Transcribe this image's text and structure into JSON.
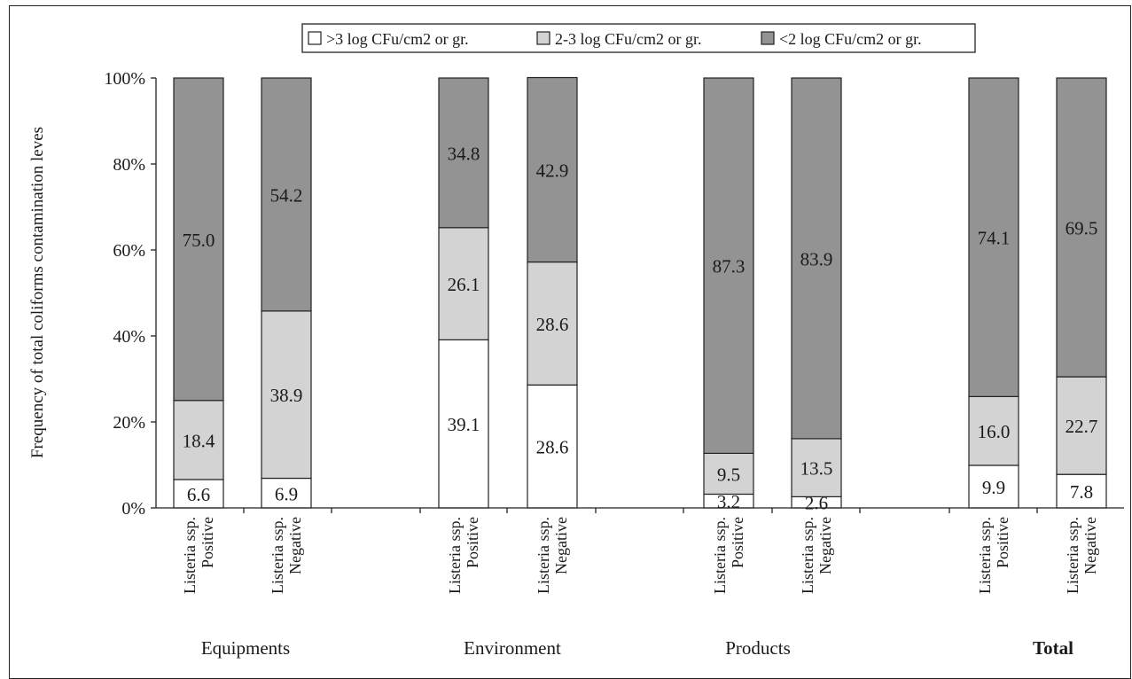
{
  "chart_data": {
    "type": "bar",
    "stacked": true,
    "percent_stacked": true,
    "title": "",
    "ylabel": "Frequency of total coliforms contamination leves",
    "xlabel": "",
    "ylim": [
      0,
      100
    ],
    "yticks": [
      "0%",
      "20%",
      "40%",
      "60%",
      "80%",
      "100%"
    ],
    "legend_position": "top-center",
    "groups": [
      {
        "label": "Equipments",
        "bold": false
      },
      {
        "label": "Environment",
        "bold": false
      },
      {
        "label": "Products",
        "bold": false
      },
      {
        "label": "Total",
        "bold": true
      }
    ],
    "categories": [
      {
        "group": 0,
        "line1": "Listeria ssp.",
        "line2": "Positive"
      },
      {
        "group": 0,
        "line1": "Listeria ssp.",
        "line2": "Negative"
      },
      {
        "group": 1,
        "line1": "Listeria ssp.",
        "line2": "Positive"
      },
      {
        "group": 1,
        "line1": "Listeria ssp.",
        "line2": "Negative"
      },
      {
        "group": 2,
        "line1": "Listeria ssp.",
        "line2": "Positive"
      },
      {
        "group": 2,
        "line1": "Listeria ssp.",
        "line2": "Negative"
      },
      {
        "group": 3,
        "line1": "Listeria ssp.",
        "line2": "Positive"
      },
      {
        "group": 3,
        "line1": "Listeria ssp.",
        "line2": "Negative"
      }
    ],
    "series": [
      {
        "name": ">3 log CFu/cm2 or gr.",
        "color": "#ffffff",
        "values": [
          6.6,
          6.9,
          39.1,
          28.6,
          3.2,
          2.6,
          9.9,
          7.8
        ],
        "labels": [
          "6.6",
          "6.9",
          "39.1",
          "28.6",
          "3.2",
          "2.6",
          "9.9",
          "7.8"
        ]
      },
      {
        "name": "2-3 log CFu/cm2 or gr.",
        "color": "#d3d3d3",
        "values": [
          18.4,
          38.9,
          26.1,
          28.6,
          9.5,
          13.5,
          16.0,
          22.7
        ],
        "labels": [
          "18.4",
          "38.9",
          "26.1",
          "28.6",
          "9.5",
          "13.5",
          "16.0",
          "22.7"
        ]
      },
      {
        "name": "<2 log CFu/cm2 or gr.",
        "color": "#939393",
        "values": [
          75.0,
          54.2,
          34.8,
          42.9,
          87.3,
          83.9,
          74.1,
          69.5
        ],
        "labels": [
          "75.0",
          "54.2",
          "34.8",
          "42.9",
          "87.3",
          "83.9",
          "74.1",
          "69.5"
        ]
      }
    ]
  }
}
